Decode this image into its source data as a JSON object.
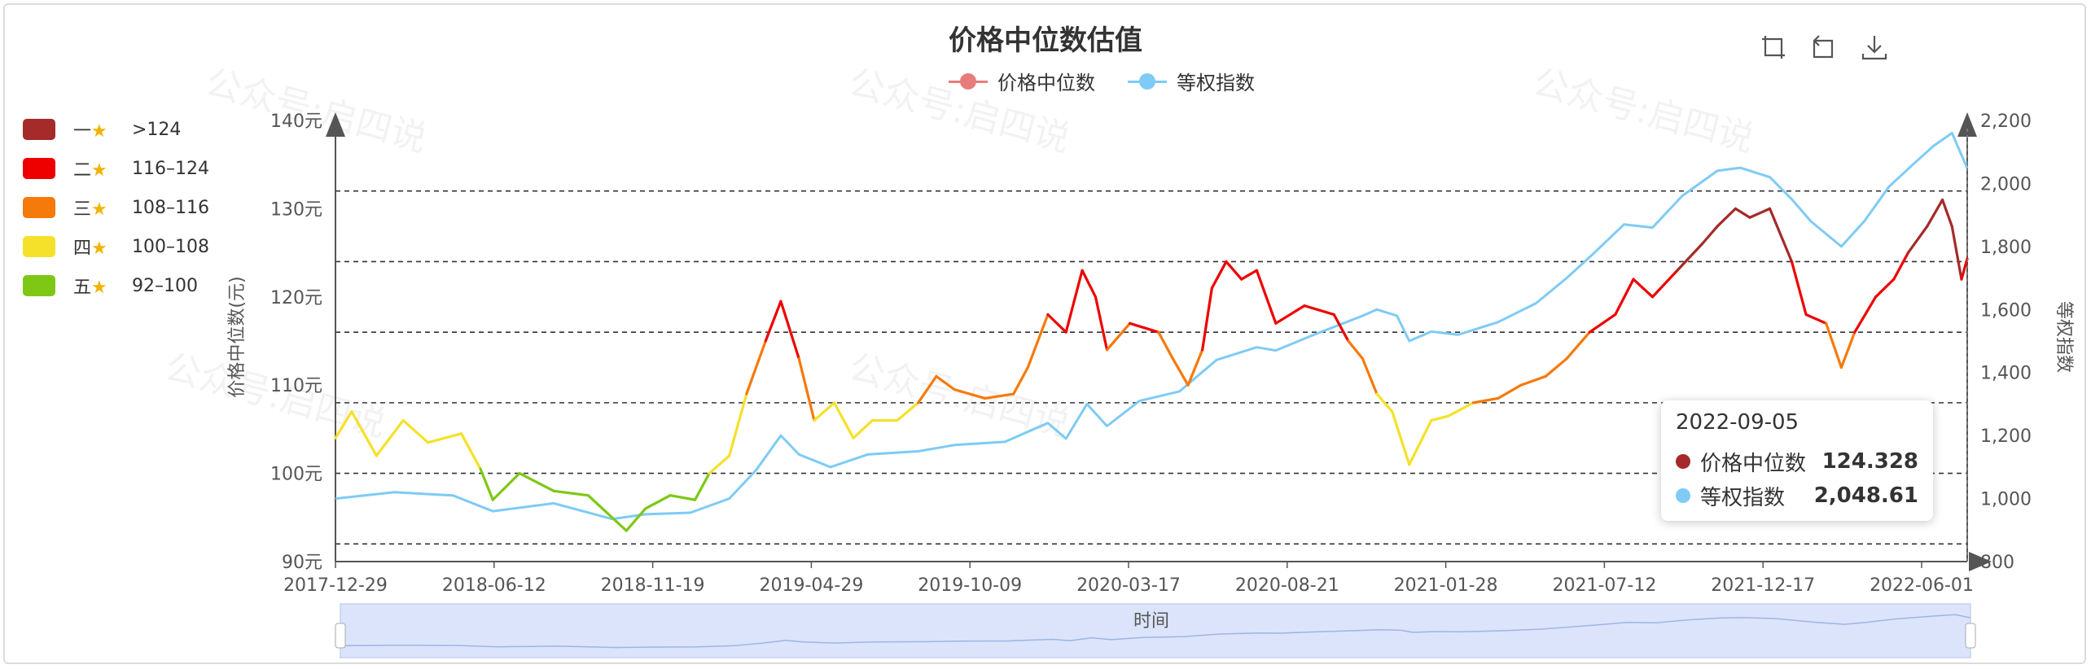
{
  "chart_data": {
    "type": "line",
    "title": "价格中位数估值",
    "ylabel_left": "价格中位数(元)",
    "ylabel_right": "等权指数",
    "xlabel": "时间",
    "x_tick_labels": [
      "2017-12-29",
      "2018-06-12",
      "2018-11-19",
      "2019-04-29",
      "2019-10-09",
      "2020-03-17",
      "2020-08-21",
      "2021-01-28",
      "2021-07-12",
      "2021-12-17",
      "2022-06-01"
    ],
    "x_range": [
      "2017-12-29",
      "2022-09-05"
    ],
    "y_left": {
      "min": 90,
      "max": 140,
      "step": 10,
      "ticks": [
        "90元",
        "100元",
        "110元",
        "120元",
        "130元",
        "140元"
      ]
    },
    "y_right": {
      "min": 800,
      "max": 2200,
      "step": 200,
      "ticks": [
        "800",
        "1,000",
        "1,200",
        "1,400",
        "1,600",
        "1,800",
        "2,000",
        "2,200"
      ]
    },
    "reference_lines_left": [
      92,
      100,
      108,
      116,
      124,
      132
    ],
    "legend_placement": "top-center",
    "grid": false,
    "series": [
      {
        "name": "价格中位数",
        "color": "#e87c7c",
        "axis": "left",
        "piecewise_colored": true,
        "points": [
          [
            "2017-12-29",
            104
          ],
          [
            "2018-01-15",
            107
          ],
          [
            "2018-02-10",
            102
          ],
          [
            "2018-03-10",
            106
          ],
          [
            "2018-04-05",
            103.5
          ],
          [
            "2018-05-10",
            104.5
          ],
          [
            "2018-05-30",
            100.5
          ],
          [
            "2018-06-12",
            97
          ],
          [
            "2018-07-10",
            100
          ],
          [
            "2018-08-15",
            98
          ],
          [
            "2018-09-20",
            97.5
          ],
          [
            "2018-10-15",
            95
          ],
          [
            "2018-10-30",
            93.5
          ],
          [
            "2018-11-19",
            96
          ],
          [
            "2018-12-15",
            97.5
          ],
          [
            "2019-01-10",
            97
          ],
          [
            "2019-01-25",
            100
          ],
          [
            "2019-02-15",
            102
          ],
          [
            "2019-03-05",
            109
          ],
          [
            "2019-03-25",
            115
          ],
          [
            "2019-04-10",
            119.5
          ],
          [
            "2019-04-29",
            113
          ],
          [
            "2019-05-15",
            106
          ],
          [
            "2019-06-05",
            108
          ],
          [
            "2019-06-25",
            104
          ],
          [
            "2019-07-15",
            106
          ],
          [
            "2019-08-10",
            106
          ],
          [
            "2019-09-01",
            108
          ],
          [
            "2019-09-20",
            111
          ],
          [
            "2019-10-09",
            109.5
          ],
          [
            "2019-11-10",
            108.5
          ],
          [
            "2019-12-10",
            109
          ],
          [
            "2019-12-25",
            112
          ],
          [
            "2020-01-15",
            118
          ],
          [
            "2020-02-03",
            116
          ],
          [
            "2020-02-20",
            123
          ],
          [
            "2020-03-05",
            120
          ],
          [
            "2020-03-17",
            114
          ],
          [
            "2020-04-10",
            117
          ],
          [
            "2020-05-10",
            116
          ],
          [
            "2020-05-25",
            113
          ],
          [
            "2020-06-10",
            110
          ],
          [
            "2020-06-25",
            114
          ],
          [
            "2020-07-05",
            121
          ],
          [
            "2020-07-20",
            124
          ],
          [
            "2020-08-05",
            122
          ],
          [
            "2020-08-21",
            123
          ],
          [
            "2020-09-10",
            117
          ],
          [
            "2020-10-10",
            119
          ],
          [
            "2020-11-10",
            118
          ],
          [
            "2020-11-25",
            115
          ],
          [
            "2020-12-10",
            113
          ],
          [
            "2020-12-25",
            109
          ],
          [
            "2021-01-10",
            107
          ],
          [
            "2021-01-28",
            101
          ],
          [
            "2021-02-20",
            106
          ],
          [
            "2021-03-10",
            106.5
          ],
          [
            "2021-04-05",
            108
          ],
          [
            "2021-05-01",
            108.5
          ],
          [
            "2021-05-25",
            110
          ],
          [
            "2021-06-20",
            111
          ],
          [
            "2021-07-12",
            113
          ],
          [
            "2021-08-05",
            116
          ],
          [
            "2021-09-01",
            118
          ],
          [
            "2021-09-20",
            122
          ],
          [
            "2021-10-10",
            120
          ],
          [
            "2021-11-05",
            123
          ],
          [
            "2021-12-01",
            126
          ],
          [
            "2021-12-17",
            128
          ],
          [
            "2022-01-05",
            130
          ],
          [
            "2022-01-20",
            129
          ],
          [
            "2022-02-10",
            130
          ],
          [
            "2022-03-05",
            124
          ],
          [
            "2022-03-20",
            118
          ],
          [
            "2022-04-10",
            117
          ],
          [
            "2022-04-26",
            112
          ],
          [
            "2022-05-10",
            116
          ],
          [
            "2022-06-01",
            120
          ],
          [
            "2022-06-20",
            122
          ],
          [
            "2022-07-05",
            125
          ],
          [
            "2022-07-25",
            128
          ],
          [
            "2022-08-10",
            131
          ],
          [
            "2022-08-20",
            128
          ],
          [
            "2022-08-30",
            122
          ],
          [
            "2022-09-05",
            124.328
          ]
        ]
      },
      {
        "name": "等权指数",
        "color": "#7ecbf5",
        "axis": "right",
        "points": [
          [
            "2017-12-29",
            1000
          ],
          [
            "2018-03-01",
            1020
          ],
          [
            "2018-05-01",
            1010
          ],
          [
            "2018-06-12",
            960
          ],
          [
            "2018-08-15",
            985
          ],
          [
            "2018-10-15",
            935
          ],
          [
            "2018-11-19",
            950
          ],
          [
            "2019-01-05",
            955
          ],
          [
            "2019-02-15",
            1000
          ],
          [
            "2019-03-15",
            1090
          ],
          [
            "2019-04-10",
            1200
          ],
          [
            "2019-04-29",
            1140
          ],
          [
            "2019-06-01",
            1100
          ],
          [
            "2019-07-10",
            1140
          ],
          [
            "2019-09-01",
            1150
          ],
          [
            "2019-10-09",
            1170
          ],
          [
            "2019-12-01",
            1180
          ],
          [
            "2020-01-15",
            1240
          ],
          [
            "2020-02-03",
            1190
          ],
          [
            "2020-02-25",
            1300
          ],
          [
            "2020-03-17",
            1230
          ],
          [
            "2020-04-20",
            1310
          ],
          [
            "2020-06-01",
            1340
          ],
          [
            "2020-07-10",
            1440
          ],
          [
            "2020-08-21",
            1480
          ],
          [
            "2020-09-10",
            1470
          ],
          [
            "2020-10-20",
            1520
          ],
          [
            "2020-12-10",
            1580
          ],
          [
            "2020-12-25",
            1600
          ],
          [
            "2021-01-15",
            1580
          ],
          [
            "2021-01-28",
            1500
          ],
          [
            "2021-02-20",
            1530
          ],
          [
            "2021-03-20",
            1520
          ],
          [
            "2021-05-01",
            1560
          ],
          [
            "2021-06-10",
            1620
          ],
          [
            "2021-07-12",
            1700
          ],
          [
            "2021-08-10",
            1780
          ],
          [
            "2021-09-10",
            1870
          ],
          [
            "2021-10-10",
            1860
          ],
          [
            "2021-11-10",
            1960
          ],
          [
            "2021-12-17",
            2040
          ],
          [
            "2022-01-10",
            2050
          ],
          [
            "2022-02-10",
            2020
          ],
          [
            "2022-03-05",
            1950
          ],
          [
            "2022-03-25",
            1880
          ],
          [
            "2022-04-26",
            1800
          ],
          [
            "2022-05-20",
            1880
          ],
          [
            "2022-06-15",
            1990
          ],
          [
            "2022-07-10",
            2060
          ],
          [
            "2022-08-01",
            2120
          ],
          [
            "2022-08-20",
            2160
          ],
          [
            "2022-08-30",
            2090
          ],
          [
            "2022-09-05",
            2048.61
          ]
        ]
      }
    ],
    "visual_map": [
      {
        "rank": "一",
        "range": ">124",
        "color": "#a52a2a"
      },
      {
        "rank": "二",
        "range": "116–124",
        "color": "#ee0000"
      },
      {
        "rank": "三",
        "range": "108–116",
        "color": "#f57a0a"
      },
      {
        "rank": "四",
        "range": "100–108",
        "color": "#f5e12a"
      },
      {
        "rank": "五",
        "range": "92–100",
        "color": "#7ec815"
      }
    ],
    "tooltip": {
      "date": "2022-09-05",
      "rows": [
        {
          "name": "价格中位数",
          "value": "124.328",
          "color": "#a52a2a"
        },
        {
          "name": "等权指数",
          "value": "2,048.61",
          "color": "#7ecbf5"
        }
      ]
    }
  },
  "star_icon": "star-icon",
  "toolbox": {
    "icons": [
      "zoom-icon",
      "zoom-reset-icon",
      "download-icon"
    ]
  },
  "watermark_text": "公众号:启四说"
}
